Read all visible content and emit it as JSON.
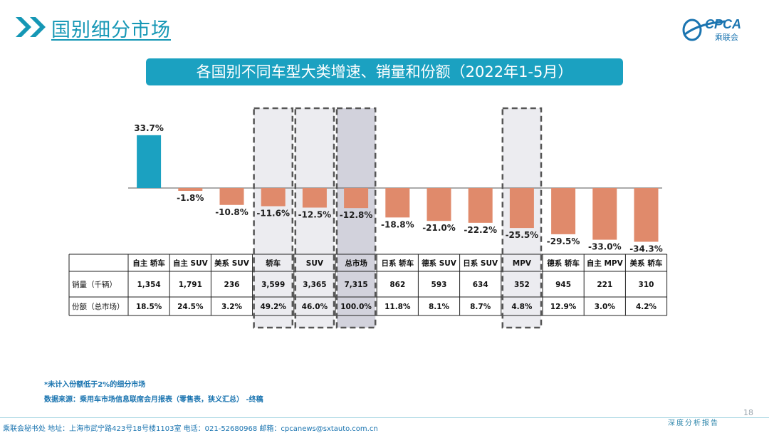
{
  "header": {
    "title": "国别细分市场"
  },
  "logo": {
    "text": "CPCA",
    "subtext": "乘联会"
  },
  "banner": {
    "title": "各国别不同车型大类增速、销量和份额（2022年1-5月）"
  },
  "chart_data": {
    "type": "bar",
    "categories": [
      "自主 轿车",
      "自主 SUV",
      "美系 SUV",
      "轿车",
      "SUV",
      "总市场",
      "日系 轿车",
      "德系 SUV",
      "日系 SUV",
      "MPV",
      "德系 轿车",
      "自主 MPV",
      "美系 轿车"
    ],
    "values": [
      33.7,
      -1.8,
      -10.8,
      -11.6,
      -12.5,
      -12.8,
      -18.8,
      -21.0,
      -22.2,
      -25.5,
      -29.5,
      -33.0,
      -34.3
    ],
    "value_labels": [
      "33.7%",
      "-1.8%",
      "-10.8%",
      "-11.6%",
      "-12.5%",
      "-12.8%",
      "-18.8%",
      "-21.0%",
      "-22.2%",
      "-25.5%",
      "-29.5%",
      "-33.0%",
      "-34.3%"
    ],
    "ylim": [
      -40,
      40
    ],
    "positive_color": "#1ba1c1",
    "negative_color": "#e08a6b",
    "highlight_fill": "#ececf0",
    "highlight_fill_strong": "#d2d2dc",
    "highlight_indices": [
      3,
      4,
      5,
      9
    ],
    "strong_highlight_indices": [
      5
    ],
    "table": {
      "rows": [
        {
          "label": "销量（千辆）",
          "values": [
            "1,354",
            "1,791",
            "236",
            "3,599",
            "3,365",
            "7,315",
            "862",
            "593",
            "634",
            "352",
            "945",
            "221",
            "310"
          ]
        },
        {
          "label": "份额（总市场）",
          "values": [
            "18.5%",
            "24.5%",
            "3.2%",
            "49.2%",
            "46.0%",
            "100.0%",
            "11.8%",
            "8.1%",
            "8.7%",
            "4.8%",
            "12.9%",
            "3.0%",
            "4.2%"
          ]
        }
      ]
    }
  },
  "notes": {
    "note1": "*未计入份额低于2%的细分市场",
    "note2": "数据来源：乘用车市场信息联席会月报表（零售表，狭义汇总） -终稿"
  },
  "footer": {
    "address": "乘联会秘书处   地址：上海市武宁路423号18号楼1103室  电话：021-52680968   邮箱：cpcanews@sxtauto.com.cn",
    "brand": "深度分析报告",
    "page": "18"
  }
}
